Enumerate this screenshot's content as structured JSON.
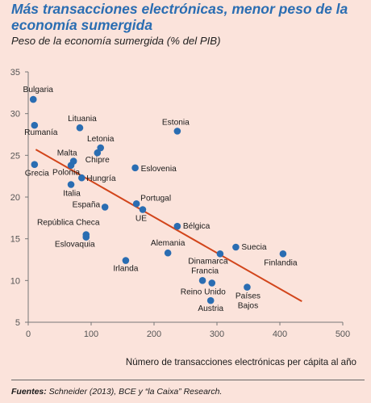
{
  "chart_data": {
    "type": "scatter",
    "title": "Más transacciones electrónicas, menor peso de la economía sumergida",
    "subtitle": "Peso de la economía sumergida (% del PIB)",
    "xlabel": "Número de transacciones electrónicas per cápita al año",
    "ylabel": "",
    "xlim": [
      0,
      500
    ],
    "ylim": [
      5,
      35
    ],
    "xticks": [
      0,
      100,
      200,
      300,
      400,
      500
    ],
    "yticks": [
      5,
      10,
      15,
      20,
      25,
      30,
      35
    ],
    "grid": false,
    "points": [
      {
        "label": "Bulgaria",
        "x": 8,
        "y": 31.7,
        "lx": 6,
        "ly": -9,
        "anchor": "middle"
      },
      {
        "label": "Rumanía",
        "x": 10,
        "y": 28.6,
        "lx": 8,
        "ly": 12,
        "anchor": "middle"
      },
      {
        "label": "Lituania",
        "x": 82,
        "y": 28.3,
        "lx": 3,
        "ly": -8,
        "anchor": "middle"
      },
      {
        "label": "Estonia",
        "x": 237,
        "y": 27.9,
        "lx": -2,
        "ly": -8,
        "anchor": "middle"
      },
      {
        "label": "Letonia",
        "x": 115,
        "y": 25.9,
        "lx": 0,
        "ly": -8,
        "anchor": "middle"
      },
      {
        "label": "Malta",
        "x": 72,
        "y": 24.3,
        "lx": -8,
        "ly": -7,
        "anchor": "middle"
      },
      {
        "label": "Chipre",
        "x": 110,
        "y": 25.3,
        "lx": 0,
        "ly": 12,
        "anchor": "middle"
      },
      {
        "label": "Grecia",
        "x": 10,
        "y": 23.9,
        "lx": 3,
        "ly": 14,
        "anchor": "middle"
      },
      {
        "label": "Polonia",
        "x": 68,
        "y": 23.8,
        "lx": -6,
        "ly": 12,
        "anchor": "middle"
      },
      {
        "label": "Hungría",
        "x": 85,
        "y": 22.3,
        "lx": 6,
        "ly": 4,
        "anchor": "start"
      },
      {
        "label": "Eslovenia",
        "x": 170,
        "y": 23.5,
        "lx": 7,
        "ly": 4,
        "anchor": "start"
      },
      {
        "label": "Italia",
        "x": 68,
        "y": 21.5,
        "lx": 1,
        "ly": 14,
        "anchor": "middle"
      },
      {
        "label": "España",
        "x": 122,
        "y": 18.8,
        "lx": -6,
        "ly": 0,
        "anchor": "end"
      },
      {
        "label": "Portugal",
        "x": 172,
        "y": 19.2,
        "lx": 5,
        "ly": -4,
        "anchor": "start"
      },
      {
        "label": "UE",
        "x": 182,
        "y": 18.5,
        "lx": -2,
        "ly": 14,
        "anchor": "middle"
      },
      {
        "label": "Bélgica",
        "x": 237,
        "y": 16.5,
        "lx": 7,
        "ly": 3,
        "anchor": "start"
      },
      {
        "label": "República Checa",
        "x": 92,
        "y": 15.5,
        "lx": -22,
        "ly": -12,
        "anchor": "middle"
      },
      {
        "label": "Eslovaquia",
        "x": 92,
        "y": 15.2,
        "lx": -14,
        "ly": 12,
        "anchor": "middle"
      },
      {
        "label": "Alemania",
        "x": 222,
        "y": 13.3,
        "lx": 0,
        "ly": -9,
        "anchor": "middle"
      },
      {
        "label": "Suecia",
        "x": 330,
        "y": 14.0,
        "lx": 7,
        "ly": 3,
        "anchor": "start"
      },
      {
        "label": "Dinamarca",
        "x": 305,
        "y": 13.2,
        "lx": -15,
        "ly": 12,
        "anchor": "middle"
      },
      {
        "label": "Finlandia",
        "x": 405,
        "y": 13.2,
        "lx": -3,
        "ly": 14,
        "anchor": "middle"
      },
      {
        "label": "Irlanda",
        "x": 155,
        "y": 12.4,
        "lx": 0,
        "ly": 13,
        "anchor": "middle"
      },
      {
        "label": "Francia",
        "x": 277,
        "y": 10.0,
        "lx": 3,
        "ly": -9,
        "anchor": "middle"
      },
      {
        "label": "Reino Unido",
        "x": 292,
        "y": 9.7,
        "lx": -11,
        "ly": 14,
        "anchor": "middle"
      },
      {
        "label": "Países Bajos",
        "x": 348,
        "y": 9.2,
        "lx": 1,
        "ly": 14,
        "anchor": "middle",
        "lines": [
          "Países",
          "Bajos"
        ]
      },
      {
        "label": "Austria",
        "x": 290,
        "y": 7.6,
        "lx": 0,
        "ly": 13,
        "anchor": "middle"
      }
    ],
    "trendline": {
      "x1": 12,
      "y1": 25.7,
      "x2": 435,
      "y2": 7.5
    },
    "colors": {
      "point": "#2a6db2",
      "trend": "#d2451b",
      "title": "#2a6db2"
    }
  },
  "xtitle": "Número de transacciones electrónicas per cápita al año",
  "source_label": "Fuentes:",
  "source_text": " Schneider (2013), BCE y “la Caixa” Research."
}
